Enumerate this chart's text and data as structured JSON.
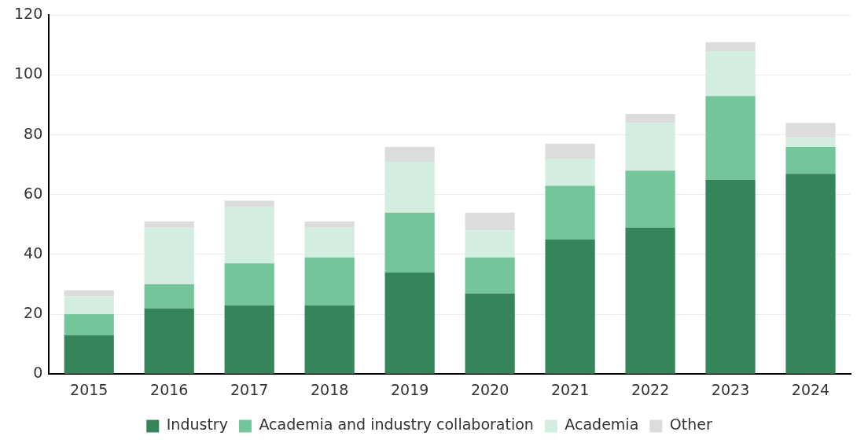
{
  "chart_data": {
    "type": "bar",
    "stacked": true,
    "categories": [
      "2015",
      "2016",
      "2017",
      "2018",
      "2019",
      "2020",
      "2021",
      "2022",
      "2023",
      "2024"
    ],
    "series": [
      {
        "name": "Industry",
        "color": "#35845a",
        "values": [
          13,
          22,
          23,
          23,
          34,
          27,
          45,
          49,
          65,
          67
        ]
      },
      {
        "name": "Academia and industry collaboration",
        "color": "#74c69a",
        "values": [
          7,
          8,
          14,
          16,
          20,
          12,
          18,
          19,
          28,
          9
        ]
      },
      {
        "name": "Academia",
        "color": "#d3ede0",
        "values": [
          6,
          19,
          19,
          10,
          17,
          9,
          9,
          16,
          15,
          3
        ]
      },
      {
        "name": "Other",
        "color": "#dcdcdc",
        "values": [
          2,
          2,
          2,
          2,
          5,
          6,
          5,
          3,
          3,
          5
        ]
      }
    ],
    "ylim": [
      0,
      120
    ],
    "yticks": [
      0,
      20,
      40,
      60,
      80,
      100,
      120
    ],
    "grid": "y",
    "legend": "bottom"
  }
}
